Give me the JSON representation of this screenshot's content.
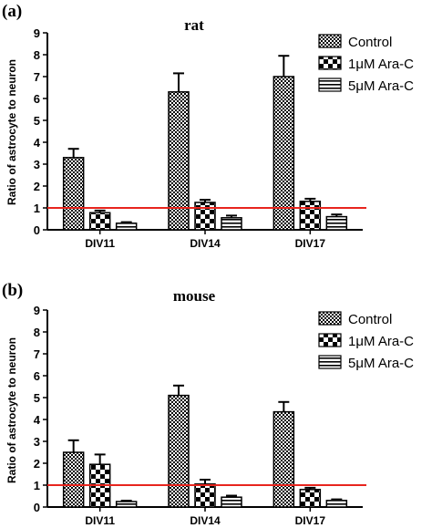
{
  "chart_data": [
    {
      "type": "bar",
      "panel_label": "(a)",
      "title": "rat",
      "ylabel": "Ratio of astrocyte to neuron",
      "xlabel": "",
      "ylim": [
        0,
        9
      ],
      "yticks": [
        0,
        1,
        2,
        3,
        4,
        5,
        6,
        7,
        8,
        9
      ],
      "categories": [
        "DIV11",
        "DIV14",
        "DIV17"
      ],
      "series": [
        {
          "name": "Control",
          "values": [
            3.3,
            6.3,
            7.0
          ],
          "errors": [
            0.4,
            0.85,
            0.95
          ]
        },
        {
          "name": "1μM Ara-C",
          "values": [
            0.78,
            1.25,
            1.3
          ],
          "errors": [
            0.1,
            0.12,
            0.12
          ]
        },
        {
          "name": "5μM Ara-C",
          "values": [
            0.3,
            0.55,
            0.6
          ],
          "errors": [
            0.05,
            0.1,
            0.1
          ]
        }
      ],
      "reference_line": {
        "y": 1,
        "color": "#e8251e"
      },
      "legend_position": "top-right"
    },
    {
      "type": "bar",
      "panel_label": "(b)",
      "title": "mouse",
      "ylabel": "Ratio of astrocyte to neuron",
      "xlabel": "",
      "ylim": [
        0,
        9
      ],
      "yticks": [
        0,
        1,
        2,
        3,
        4,
        5,
        6,
        7,
        8,
        9
      ],
      "categories": [
        "DIV11",
        "DIV14",
        "DIV17"
      ],
      "series": [
        {
          "name": "Control",
          "values": [
            2.5,
            5.1,
            4.35
          ],
          "errors": [
            0.55,
            0.45,
            0.45
          ]
        },
        {
          "name": "1μM Ara-C",
          "values": [
            1.95,
            1.05,
            0.8
          ],
          "errors": [
            0.45,
            0.2,
            0.08
          ]
        },
        {
          "name": "5μM Ara-C",
          "values": [
            0.25,
            0.45,
            0.3
          ],
          "errors": [
            0.04,
            0.07,
            0.05
          ]
        }
      ],
      "reference_line": {
        "y": 1,
        "color": "#e8251e"
      },
      "legend_position": "top-right"
    }
  ]
}
